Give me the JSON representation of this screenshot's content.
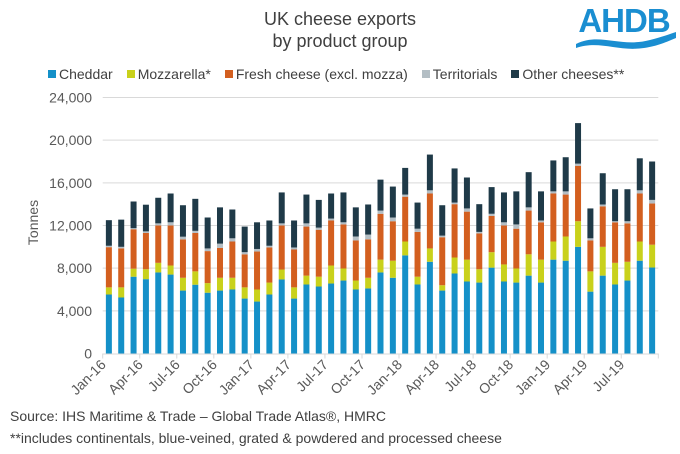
{
  "logo": {
    "text": "AHDB",
    "color": "#1a8ed1"
  },
  "chart_data": {
    "type": "bar",
    "stacked": true,
    "title": "UK cheese exports by product group",
    "title_lines": [
      "UK cheese exports",
      "by product group"
    ],
    "xlabel": "",
    "ylabel": "Tonnes",
    "ylim": [
      0,
      24000
    ],
    "yticks": [
      0,
      4000,
      8000,
      12000,
      16000,
      20000,
      24000
    ],
    "ytick_labels": [
      "0",
      "4,000",
      "8,000",
      "12,000",
      "16,000",
      "20,000",
      "24,000"
    ],
    "grid": true,
    "legend_position": "top",
    "categories": [
      "Jan-16",
      "Feb-16",
      "Mar-16",
      "Apr-16",
      "May-16",
      "Jun-16",
      "Jul-16",
      "Aug-16",
      "Sep-16",
      "Oct-16",
      "Nov-16",
      "Dec-16",
      "Jan-17",
      "Feb-17",
      "Mar-17",
      "Apr-17",
      "May-17",
      "Jun-17",
      "Jul-17",
      "Aug-17",
      "Sep-17",
      "Oct-17",
      "Nov-17",
      "Dec-17",
      "Jan-18",
      "Feb-18",
      "Mar-18",
      "Apr-18",
      "May-18",
      "Jun-18",
      "Jul-18",
      "Aug-18",
      "Sep-18",
      "Oct-18",
      "Nov-18",
      "Dec-18",
      "Jan-19",
      "Feb-19",
      "Mar-19",
      "Apr-19",
      "May-19",
      "Jun-19",
      "Jul-19",
      "Aug-19",
      "Sep-19"
    ],
    "xtick_labels": [
      "Jan-16",
      "Apr-16",
      "Jul-16",
      "Oct-16",
      "Jan-17",
      "Apr-17",
      "Jul-17",
      "Oct-17",
      "Jan-18",
      "Apr-18",
      "Jul-18",
      "Oct-18",
      "Jan-19",
      "Apr-19",
      "Jul-19"
    ],
    "series": [
      {
        "name": "Cheddar",
        "color": "#1490c8",
        "values": [
          5530,
          5250,
          7200,
          6970,
          7600,
          7400,
          5900,
          6450,
          5700,
          5900,
          6000,
          5150,
          4870,
          5530,
          6940,
          5150,
          6470,
          6280,
          6560,
          6840,
          6000,
          6100,
          7600,
          7100,
          9200,
          6470,
          8600,
          5900,
          7500,
          6750,
          6650,
          8050,
          6750,
          6650,
          7300,
          6650,
          8800,
          8700,
          10000,
          5800,
          7300,
          6470,
          6840,
          8700,
          8060
        ]
      },
      {
        "name": "Mozzarella*",
        "color": "#c9d11b",
        "values": [
          670,
          950,
          750,
          930,
          900,
          850,
          1200,
          1250,
          900,
          1200,
          1100,
          1050,
          1130,
          1120,
          930,
          1050,
          830,
          920,
          1690,
          1130,
          840,
          1000,
          1200,
          1600,
          1300,
          730,
          1250,
          500,
          1500,
          2050,
          1250,
          1450,
          1600,
          1320,
          2000,
          2150,
          1700,
          2270,
          2400,
          1900,
          2700,
          2030,
          1760,
          1800,
          2140
        ]
      },
      {
        "name": "Fresh cheese (excl. mozza)",
        "color": "#d35f1f",
        "values": [
          3770,
          3650,
          3700,
          3400,
          3500,
          3750,
          3600,
          3600,
          3000,
          2800,
          3400,
          3100,
          3560,
          3290,
          4130,
          3550,
          4600,
          4400,
          4220,
          4130,
          3760,
          3600,
          4300,
          3700,
          4200,
          4200,
          5150,
          4500,
          5000,
          4500,
          3350,
          3400,
          3650,
          3730,
          4100,
          3500,
          4500,
          3930,
          5200,
          2900,
          3800,
          3800,
          3600,
          4500,
          3860
        ]
      },
      {
        "name": "Territorials",
        "color": "#b3bec4",
        "values": [
          130,
          150,
          100,
          150,
          200,
          300,
          250,
          200,
          250,
          400,
          300,
          200,
          240,
          160,
          200,
          190,
          300,
          200,
          180,
          200,
          370,
          450,
          300,
          350,
          200,
          300,
          300,
          150,
          150,
          300,
          150,
          200,
          300,
          400,
          300,
          170,
          200,
          300,
          200,
          200,
          170,
          100,
          200,
          300,
          340
        ]
      },
      {
        "name": "Other cheeses**",
        "color": "#1f3a48",
        "values": [
          2400,
          2550,
          2500,
          2500,
          2400,
          2700,
          2950,
          3000,
          2900,
          3400,
          2700,
          2400,
          2500,
          2370,
          2900,
          2530,
          2700,
          2600,
          2350,
          2800,
          2730,
          2820,
          2900,
          2900,
          2500,
          2450,
          3350,
          2850,
          3200,
          2900,
          2600,
          2500,
          2800,
          3100,
          3300,
          2730,
          2900,
          3200,
          3800,
          2800,
          2930,
          3000,
          3000,
          3000,
          3600
        ]
      }
    ]
  },
  "footer": {
    "source": "Source: IHS Maritime & Trade – Global Trade Atlas®, HMRC",
    "note": "**includes continentals, blue-veined, grated & powdered and processed cheese"
  }
}
